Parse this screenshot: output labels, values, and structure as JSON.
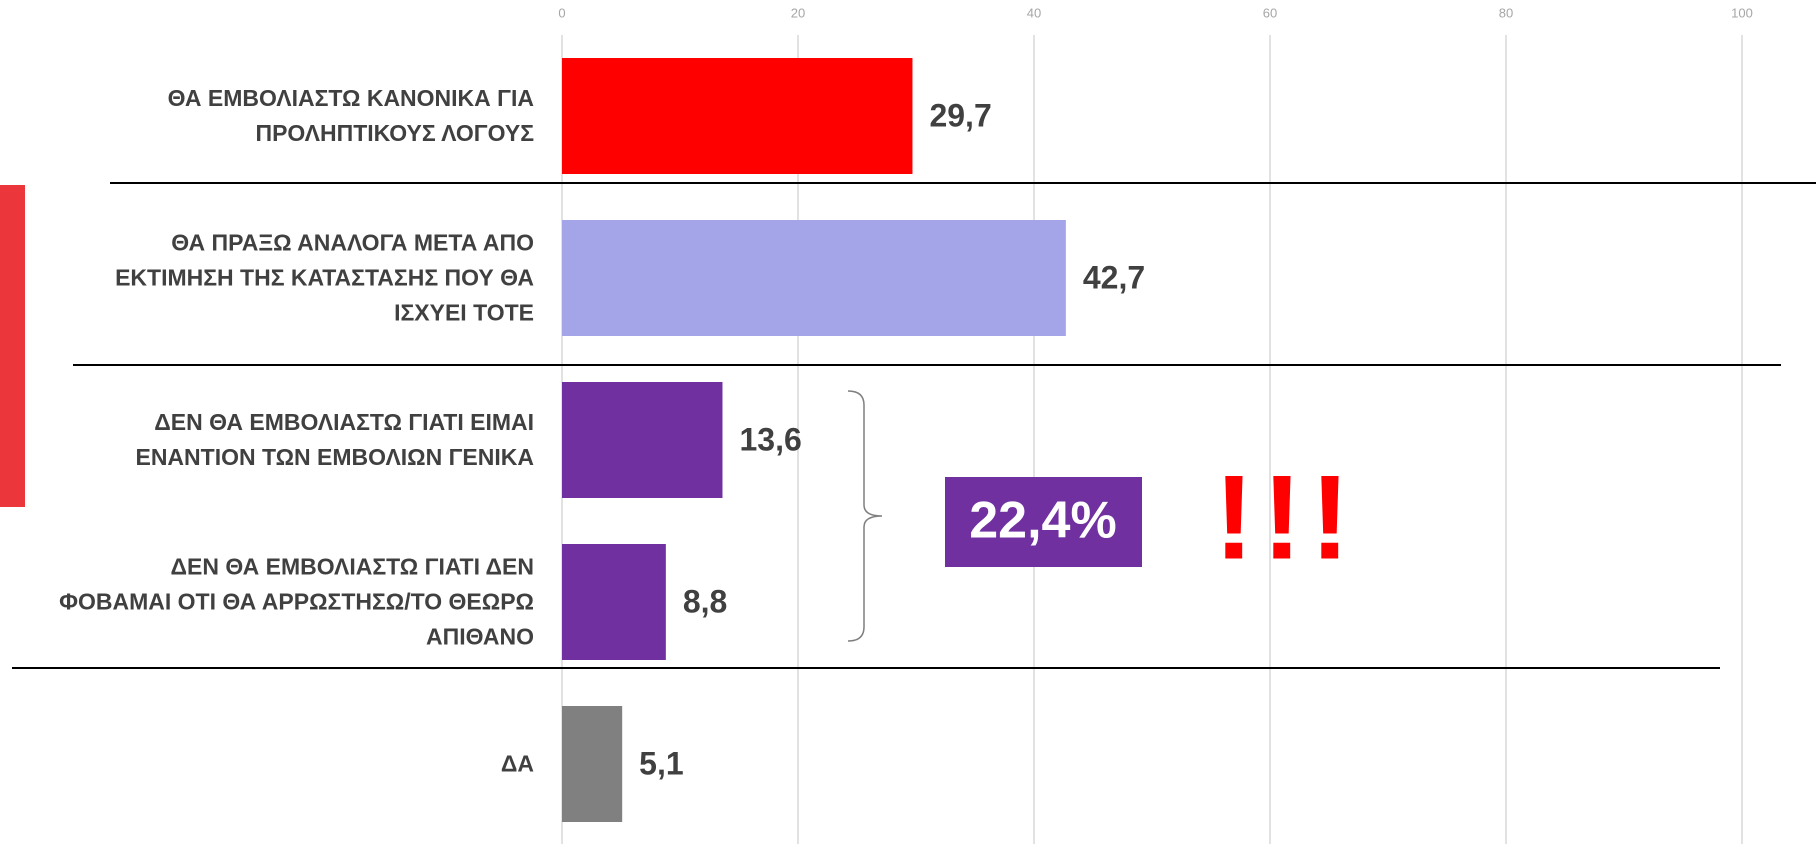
{
  "chart_data": {
    "type": "barh",
    "categories": [
      "ΘΑ ΕΜΒΟΛΙΑΣΤΩ ΚΑΝΟΝΙΚΑ ΓΙΑ ΠΡΟΛΗΠΤΙΚΟΥΣ ΛΟΓΟΥΣ",
      "ΘΑ ΠΡΑΞΩ ΑΝΑΛΟΓΑ ΜΕΤΑ ΑΠΟ ΕΚΤΙΜΗΣΗ ΤΗΣ ΚΑΤΑΣΤΑΣΗΣ ΠΟΥ ΘΑ ΙΣΧΥΕΙ ΤΟΤΕ",
      "ΔΕΝ ΘΑ ΕΜΒΟΛΙΑΣΤΩ ΓΙΑΤΙ ΕΙΜΑΙ ΕΝΑΝΤΙΟΝ ΤΩΝ ΕΜΒΟΛΙΩΝ ΓΕΝΙΚΑ",
      "ΔΕΝ ΘΑ ΕΜΒΟΛΙΑΣΤΩ ΓΙΑΤΙ ΔΕΝ ΦΟΒΑΜΑΙ ΟΤΙ ΘΑ ΑΡΡΩΣΤΗΣΩ/ΤΟ ΘΕΩΡΩ ΑΠΙΘΑΝΟ",
      "ΔΑ"
    ],
    "values": [
      29.7,
      42.7,
      13.6,
      8.8,
      5.1
    ],
    "value_labels": [
      "29,7",
      "42,7",
      "13,6",
      "8,8",
      "5,1"
    ],
    "colors": [
      "#ff0000",
      "#a3a5e8",
      "#7030a0",
      "#7030a0",
      "#808080"
    ],
    "xlim": [
      0,
      100
    ],
    "xticks": [
      0,
      20,
      40,
      60,
      80,
      100
    ],
    "grid": true,
    "annotations": [
      "22,4%",
      "!!!"
    ]
  }
}
